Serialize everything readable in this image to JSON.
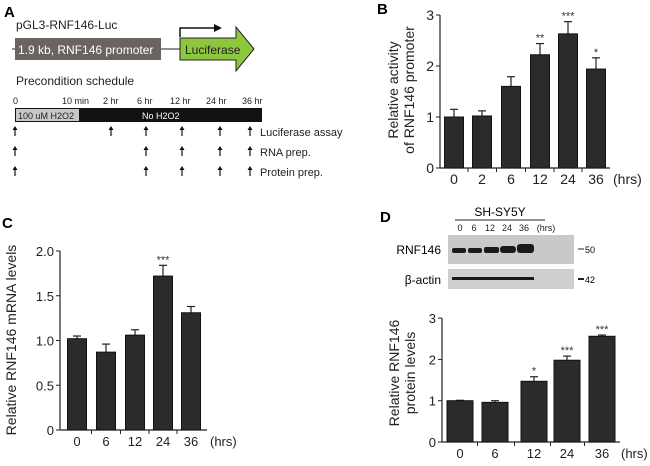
{
  "panel_labels": {
    "a": "A",
    "b": "B",
    "c": "C",
    "d": "D"
  },
  "construct": {
    "name": "pGL3-RNF146-Luc",
    "promoter": "1.9 kb, RNF146 promoter",
    "reporter": "Luciferase",
    "colors": {
      "promoter": "#6b6362",
      "reporter": "#8dc63f"
    }
  },
  "schedule": {
    "title": "Precondition schedule",
    "time_labels": [
      "0",
      "10 min",
      "2 hr",
      "6 hr",
      "12 hr",
      "24 hr",
      "36 hr"
    ],
    "treatment": "100 uM H2O2",
    "no_treatment": "No H2O2",
    "rows": [
      {
        "label": "Luciferase assay",
        "arrows": [
          "0",
          "2 hr",
          "6 hr",
          "12 hr",
          "24 hr",
          "36 hr"
        ]
      },
      {
        "label": "RNA prep.",
        "arrows": [
          "0",
          "6 hr",
          "12 hr",
          "24 hr",
          "36 hr"
        ]
      },
      {
        "label": "Protein prep.",
        "arrows": [
          "0",
          "6 hr",
          "12 hr",
          "24 hr",
          "36 hr"
        ]
      }
    ]
  },
  "blot": {
    "cell_line": "SH-SY5Y",
    "lanes": [
      "0",
      "6",
      "12",
      "24",
      "36"
    ],
    "unit": "(hrs)",
    "rows": [
      {
        "label": "RNF146",
        "marker": "50"
      },
      {
        "label": "β-actin",
        "marker": "42"
      }
    ]
  },
  "chart_data": [
    {
      "id": "B",
      "type": "bar",
      "ylabel": [
        "Relative activity",
        "of RNF146 promoter"
      ],
      "xunit": "(hrs)",
      "categories": [
        "0",
        "2",
        "6",
        "12",
        "24",
        "36"
      ],
      "values": [
        1.0,
        1.02,
        1.6,
        2.22,
        2.63,
        1.94
      ],
      "errors": [
        0.15,
        0.1,
        0.19,
        0.22,
        0.24,
        0.22
      ],
      "significance": [
        "",
        "",
        "",
        "**",
        "***",
        "*"
      ],
      "ylim": [
        0,
        3
      ],
      "yticks": [
        "0",
        "1",
        "2",
        "3"
      ],
      "bar_color": "#2b2b2b"
    },
    {
      "id": "C",
      "type": "bar",
      "ylabel": [
        "Relative RNF146 mRNA levels"
      ],
      "xunit": "(hrs)",
      "categories": [
        "0",
        "6",
        "12",
        "24",
        "36"
      ],
      "values": [
        1.02,
        0.87,
        1.06,
        1.72,
        1.31
      ],
      "errors": [
        0.03,
        0.09,
        0.06,
        0.12,
        0.07
      ],
      "significance": [
        "",
        "",
        "",
        "***",
        ""
      ],
      "ylim": [
        0,
        2.0
      ],
      "yticks": [
        "0",
        "0.5",
        "1.0",
        "1.5",
        "2.0"
      ],
      "bar_color": "#2b2b2b"
    },
    {
      "id": "D",
      "type": "bar",
      "ylabel": [
        "Relative RNF146",
        "protein levels"
      ],
      "xunit": "(hrs)",
      "categories": [
        "0",
        "6",
        "12",
        "24",
        "36"
      ],
      "values": [
        1.0,
        0.96,
        1.47,
        1.98,
        2.56
      ],
      "errors": [
        0.01,
        0.04,
        0.11,
        0.1,
        0.03
      ],
      "significance": [
        "",
        "",
        "*",
        "***",
        "***"
      ],
      "ylim": [
        0,
        3
      ],
      "yticks": [
        "0",
        "1",
        "2",
        "3"
      ],
      "bar_color": "#2b2b2b"
    }
  ]
}
